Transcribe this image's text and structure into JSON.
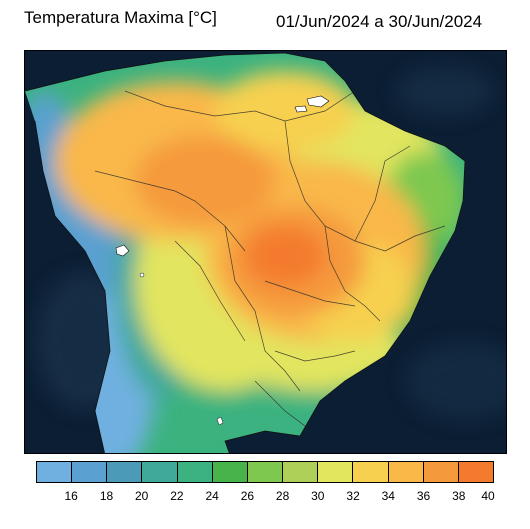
{
  "header": {
    "title": "Temperatura Maxima [°C]",
    "period": "01/Jun/2024 a 30/Jun/2024"
  },
  "map": {
    "variable": "temperatura-maxima",
    "units": "°C",
    "region": "Brasil"
  },
  "legend": {
    "colors": [
      "#6fb0e0",
      "#5aa0d0",
      "#4a9ab8",
      "#40a99a",
      "#3bb27f",
      "#49b34b",
      "#7ec850",
      "#aed058",
      "#e2e55e",
      "#f7d050",
      "#f9b848",
      "#f59a3c",
      "#f47a2e"
    ],
    "tick_labels": [
      "16",
      "18",
      "20",
      "22",
      "24",
      "26",
      "28",
      "30",
      "32",
      "34",
      "36",
      "38",
      "40"
    ]
  }
}
